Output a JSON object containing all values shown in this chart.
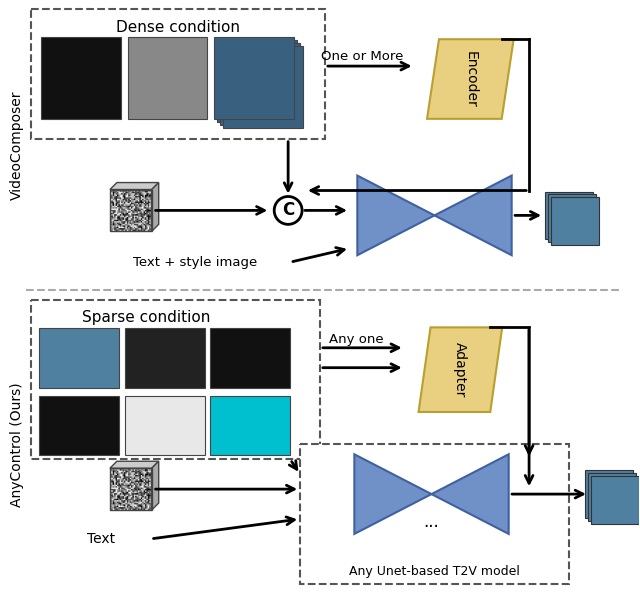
{
  "bg_color": "#ffffff",
  "top_label": "VideoComposer",
  "bottom_label": "AnyControl (Ours)",
  "dense_condition_label": "Dense condition",
  "sparse_condition_label": "Sparse condition",
  "one_or_more_label": "One or More",
  "any_one_label": "Any one",
  "encoder_label": "Encoder",
  "adapter_label": "Adapter",
  "concat_label": "C",
  "text_style_label": "Text + style image",
  "text_label": "Text",
  "any_unet_label": "Any Unet-based T2V model",
  "dots_label": "...",
  "encoder_color": "#e8d080",
  "adapter_color": "#e8d080",
  "encoder_edge": "#b8a030",
  "bowtie_color": "#7090c8",
  "bowtie_edge_color": "#4060a0",
  "sep_color": "#aaaaaa",
  "dashed_color": "#555555",
  "arrow_lw": 2.0
}
